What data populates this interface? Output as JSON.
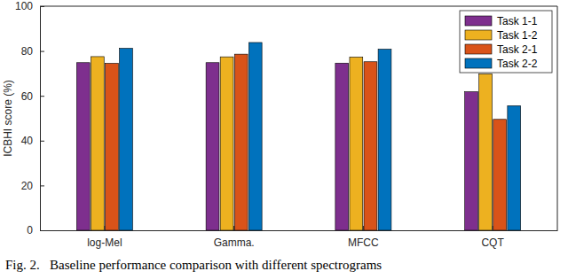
{
  "chart_data": {
    "type": "bar",
    "caption": "Fig. 2.   Baseline performance comparison with different spectrograms",
    "y_label": "ICBHI score (%)",
    "categories": [
      "log-Mel",
      "Gamma.",
      "MFCC",
      "CQT"
    ],
    "series": [
      {
        "name": "Task 1-1",
        "color": "#7e2f8e",
        "values": [
          74.8,
          74.8,
          74.6,
          61.8
        ]
      },
      {
        "name": "Task 1-2",
        "color": "#edb120",
        "values": [
          77.5,
          77.4,
          77.3,
          69.8
        ]
      },
      {
        "name": "Task 2-1",
        "color": "#d95319",
        "values": [
          74.5,
          78.6,
          75.2,
          49.5
        ]
      },
      {
        "name": "Task 2-2",
        "color": "#0072bd",
        "values": [
          81.2,
          83.8,
          80.8,
          55.6
        ]
      }
    ],
    "ylim": [
      0,
      100
    ],
    "yticks": [
      0,
      20,
      40,
      60,
      80,
      100
    ],
    "grid": false,
    "legend": "northeast"
  }
}
